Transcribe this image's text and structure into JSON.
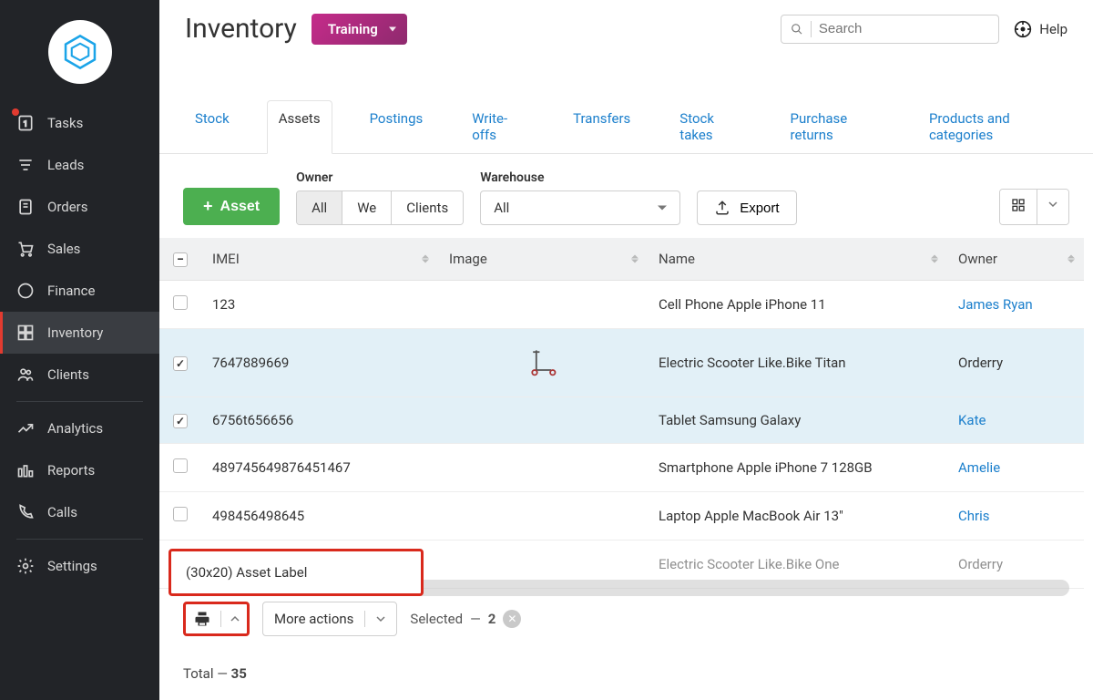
{
  "sidebar": {
    "items": [
      {
        "label": "Tasks",
        "icon": "tasks",
        "badge": true
      },
      {
        "label": "Leads",
        "icon": "leads"
      },
      {
        "label": "Orders",
        "icon": "orders"
      },
      {
        "label": "Sales",
        "icon": "sales"
      },
      {
        "label": "Finance",
        "icon": "finance"
      },
      {
        "label": "Inventory",
        "icon": "inventory",
        "active": true
      },
      {
        "label": "Clients",
        "icon": "clients"
      },
      {
        "label": "Analytics",
        "icon": "analytics",
        "sep_before": true
      },
      {
        "label": "Reports",
        "icon": "reports"
      },
      {
        "label": "Calls",
        "icon": "calls"
      },
      {
        "label": "Settings",
        "icon": "settings",
        "sep_before": true
      }
    ]
  },
  "header": {
    "title": "Inventory",
    "env": "Training",
    "search_placeholder": "Search",
    "help": "Help"
  },
  "tabs": [
    "Stock",
    "Assets",
    "Postings",
    "Write-offs",
    "Transfers",
    "Stock takes",
    "Purchase returns",
    "Products and categories"
  ],
  "tabs_active": 1,
  "toolbar": {
    "asset_btn": "Asset",
    "owner_label": "Owner",
    "owner_options": [
      "All",
      "We",
      "Clients"
    ],
    "owner_active": 0,
    "warehouse_label": "Warehouse",
    "warehouse_value": "All",
    "export": "Export"
  },
  "table": {
    "columns": [
      "IMEI",
      "Image",
      "Name",
      "Owner"
    ],
    "rows": [
      {
        "checked": false,
        "imei": "123",
        "image": null,
        "name": "Cell Phone Apple iPhone 11",
        "owner": "James Ryan",
        "owner_link": true
      },
      {
        "checked": true,
        "imei": "7647889669",
        "image": "scooter",
        "name": "Electric Scooter Like.Bike Titan",
        "owner": "Orderry",
        "owner_link": false
      },
      {
        "checked": true,
        "imei": "6756t656656",
        "image": null,
        "name": "Tablet Samsung Galaxy",
        "owner": "Kate",
        "owner_link": true
      },
      {
        "checked": false,
        "imei": "489745649876451467",
        "image": null,
        "name": "Smartphone Apple iPhone 7 128GB",
        "owner": "Amelie",
        "owner_link": true
      },
      {
        "checked": false,
        "imei": "498456498645",
        "image": null,
        "name": "Laptop Apple MacBook Air 13\"",
        "owner": "Chris",
        "owner_link": true
      },
      {
        "checked": false,
        "imei": "",
        "image": null,
        "name": "Electric Scooter Like.Bike One",
        "owner": "Orderry",
        "owner_link": false,
        "faded": true
      }
    ]
  },
  "popup_label": "(30x20) Asset Label",
  "more_actions": "More actions",
  "selected_label": "Selected",
  "selected_count": "2",
  "total_label": "Total",
  "total_count": "35",
  "colors": {
    "accent": "#1b7fcc",
    "green": "#4caf50",
    "red": "#d9291c",
    "badge": "#8e2a6e",
    "sidebar": "#222428"
  }
}
